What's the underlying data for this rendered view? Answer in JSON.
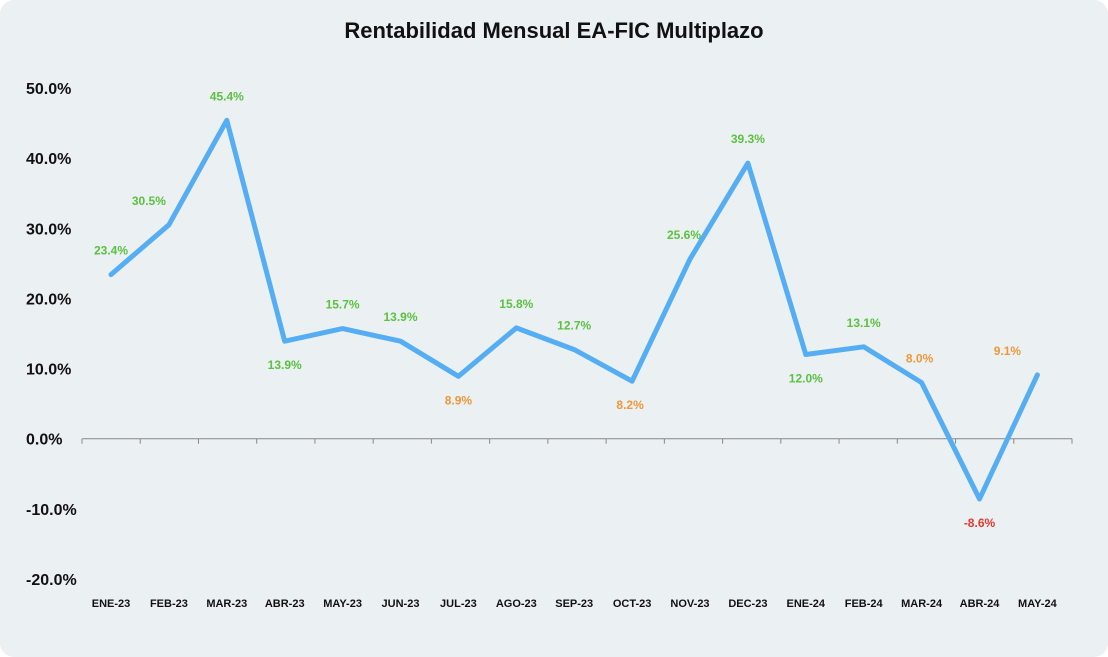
{
  "chart_data": {
    "type": "line",
    "title": "Rentabilidad Mensual EA-FIC Multiplazo",
    "xlabel": "",
    "ylabel": "",
    "ylim": [
      -20,
      50
    ],
    "yticks": [
      50,
      40,
      30,
      20,
      10,
      0,
      -10,
      -20
    ],
    "ytick_labels": [
      "50.0%",
      "40.0%",
      "30.0%",
      "20.0%",
      "10.0%",
      "0.0%",
      "-10.0%",
      "-20.0%"
    ],
    "grid": false,
    "legend": "none",
    "categories": [
      "ENE-23",
      "FEB-23",
      "MAR-23",
      "ABR-23",
      "MAY-23",
      "JUN-23",
      "JUL-23",
      "AGO-23",
      "SEP-23",
      "OCT-23",
      "NOV-23",
      "DEC-23",
      "ENE-24",
      "FEB-24",
      "MAR-24",
      "ABR-24",
      "MAY-24"
    ],
    "series": [
      {
        "values": [
          23.4,
          30.5,
          45.4,
          13.9,
          15.7,
          13.9,
          8.9,
          15.8,
          12.7,
          8.2,
          25.6,
          39.3,
          12.0,
          13.1,
          8.0,
          -8.6,
          9.1
        ],
        "data_labels": [
          "23.4%",
          "30.5%",
          "45.4%",
          "13.9%",
          "15.7%",
          "13.9%",
          "8.9%",
          "15.8%",
          "12.7%",
          "8.2%",
          "25.6%",
          "39.3%",
          "12.0%",
          "13.1%",
          "8.0%",
          "-8.6%",
          "9.1%"
        ],
        "label_colors": [
          "#5cc140",
          "#5cc140",
          "#5cc140",
          "#5cc140",
          "#5cc140",
          "#5cc140",
          "#f0973a",
          "#5cc140",
          "#5cc140",
          "#f0973a",
          "#5cc140",
          "#5cc140",
          "#5cc140",
          "#5cc140",
          "#f0973a",
          "#e8382c",
          "#f0973a"
        ]
      }
    ],
    "colors": {
      "line": "#55aef3",
      "positive": "#5cc140",
      "neutral": "#f0973a",
      "negative": "#e8382c",
      "background": "#ebf0f3",
      "axis": "#888888"
    }
  }
}
